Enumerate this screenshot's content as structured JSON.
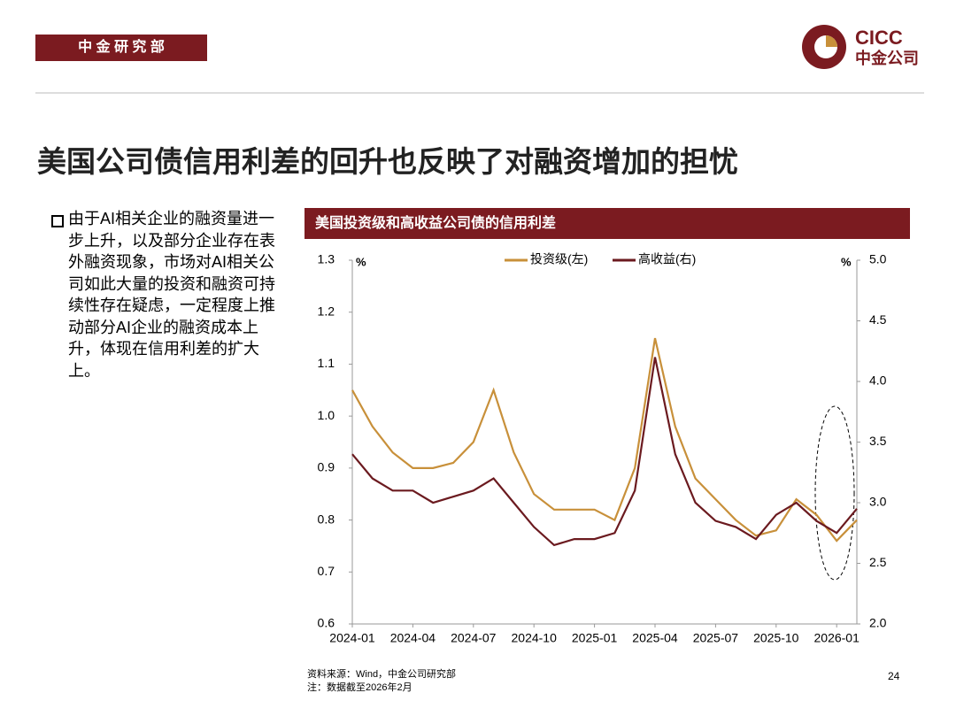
{
  "header": {
    "label": "中 金 研 究 部",
    "logo_en": "CICC",
    "logo_cn": "中金公司"
  },
  "title": "美国公司债信用利差的回升也反映了对融资增加的担忧",
  "bullet": "由于AI相关企业的融资量进一步上升，以及部分企业存在表外融资现象，市场对AI相关公司如此大量的投资和融资可持续性存在疑虑，一定程度上推动部分AI企业的融资成本上升，体现在信用利差的扩大上。",
  "chart_data": {
    "type": "line",
    "title": "美国投资级和高收益公司债的信用利差",
    "y_unit": "%",
    "y2_unit": "%",
    "x": [
      "2024-01",
      "2024-02",
      "2024-03",
      "2024-04",
      "2024-05",
      "2024-06",
      "2024-07",
      "2024-08",
      "2024-09",
      "2024-10",
      "2024-11",
      "2024-12",
      "2025-01",
      "2025-02",
      "2025-03",
      "2025-04",
      "2025-05",
      "2025-06",
      "2025-07",
      "2025-08",
      "2025-09",
      "2025-10",
      "2025-11",
      "2025-12",
      "2026-01",
      "2026-02"
    ],
    "xlim": [
      "2024-01",
      "2026-02"
    ],
    "xticks": [
      "2024-01",
      "2024-04",
      "2024-07",
      "2024-10",
      "2025-01",
      "2025-04",
      "2025-07",
      "2025-10",
      "2026-01"
    ],
    "ylim": [
      0.6,
      1.3
    ],
    "yticks": [
      0.6,
      0.7,
      0.8,
      0.9,
      {
        "value": 1,
        "label": "1.0"
      },
      1.1,
      1.2,
      1.3
    ],
    "y2lim": [
      2,
      5
    ],
    "y2ticks": [
      {
        "value": 2,
        "label": "2.0"
      },
      2.5,
      {
        "value": 3,
        "label": "3.0"
      },
      3.5,
      {
        "value": 4,
        "label": "4.0"
      },
      4.5,
      {
        "value": 5,
        "label": "5.0"
      }
    ],
    "series": [
      {
        "name": "投资级(左)",
        "color": "#c8903a",
        "values": [
          1.05,
          0.98,
          0.93,
          0.9,
          0.9,
          0.91,
          0.95,
          1.05,
          0.93,
          0.85,
          0.82,
          0.82,
          0.82,
          0.8,
          0.9,
          1.15,
          0.98,
          0.88,
          0.84,
          0.8,
          0.77,
          0.78,
          0.84,
          0.81,
          0.76,
          0.8
        ]
      },
      {
        "name": "高收益(右)",
        "color": "#6b1a1f",
        "axis": "y2",
        "values": [
          3.4,
          3.2,
          3.1,
          3.1,
          3.0,
          3.05,
          3.1,
          3.2,
          3.0,
          2.8,
          2.65,
          2.7,
          2.7,
          2.75,
          3.1,
          4.2,
          3.4,
          3.0,
          2.85,
          2.8,
          2.7,
          2.9,
          3.0,
          2.85,
          2.75,
          2.95
        ]
      }
    ],
    "legend": "top",
    "grid": false
  },
  "footer": {
    "source": "资料来源：Wind，中金公司研究部",
    "note": "注：数据截至2026年2月",
    "page": "24"
  }
}
